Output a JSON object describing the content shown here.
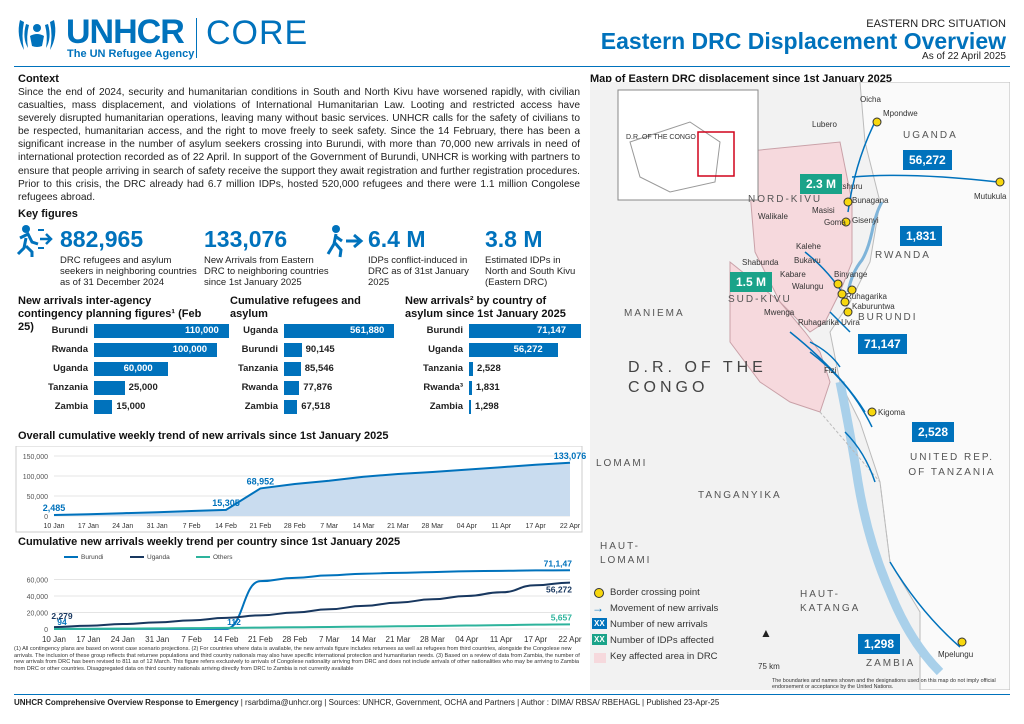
{
  "header": {
    "brand": "UNHCR",
    "tagline": "The UN Refugee Agency",
    "core": "CORE",
    "situation": "EASTERN DRC SITUATION",
    "title": "Eastern DRC Displacement Overview",
    "as_of": "As of 22 April 2025"
  },
  "context": {
    "title": "Context",
    "text": "Since the end of 2024, security and humanitarian conditions in South and North Kivu have worsened rapidly, with civilian casualties, mass displacement, and violations of International Humanitarian Law. Looting and restricted access have severely disrupted humanitarian operations, leaving many without basic services. UNHCR calls for the safety of civilians to be respected, humanitarian access, and the right to move freely to seek safety. Since the 14 February, there has been a significant increase in the number of asylum seekers crossing into Burundi, with more than 70,000 new arrivals in need of international protection recorded as of 22 April. In support of the Government of Burundi, UNHCR is working with partners to ensure that people arriving in search of safety receive the support they await registration and further registration procedures. Prior to this crisis, the DRC already had 6.7 million IDPs, hosted 520,000 refugees and there were 1.1 million Congolese refugees abroad."
  },
  "key_figures": {
    "title": "Key figures",
    "items": [
      {
        "value": "882,965",
        "label": "DRC refugees and asylum seekers in neighboring countries as of 31 December 2024",
        "icon": "person-running-arrow-icon"
      },
      {
        "value": "133,076",
        "label": "New Arrivals from Eastern DRC to neighboring countries since 1st January 2025",
        "icon": ""
      },
      {
        "value": "6.4 M",
        "label": "IDPs conflict-induced in DRC as of 31st January 2025",
        "icon": "person-walking-arrow-icon"
      },
      {
        "value": "3.8 M",
        "label": "Estimated IDPs in North and South Kivu (Eastern DRC)",
        "icon": ""
      }
    ]
  },
  "chart_data": [
    {
      "type": "bar",
      "title": "New arrivals inter-agency contingency planning figures¹ (Feb 25)",
      "categories": [
        "Burundi",
        "Rwanda",
        "Uganda",
        "Tanzania",
        "Zambia"
      ],
      "values": [
        110000,
        100000,
        60000,
        25000,
        15000
      ],
      "labels": [
        "110,000",
        "100,000",
        "60,000",
        "25,000",
        "15,000"
      ],
      "orientation": "horizontal"
    },
    {
      "type": "bar",
      "title": "Cumulative refugees and asylum",
      "categories": [
        "Uganda",
        "Burundi",
        "Tanzania",
        "Rwanda",
        "Zambia"
      ],
      "values": [
        561880,
        90145,
        85546,
        77876,
        67518
      ],
      "labels": [
        "561,880",
        "90,145",
        "85,546",
        "77,876",
        "67,518"
      ],
      "orientation": "horizontal"
    },
    {
      "type": "bar",
      "title": "New arrivals² by country of asylum since 1st January 2025",
      "categories": [
        "Burundi",
        "Uganda",
        "Tanzania",
        "Rwanda³",
        "Zambia"
      ],
      "values": [
        71147,
        56272,
        2528,
        1831,
        1298
      ],
      "labels": [
        "71,147",
        "56,272",
        "2,528",
        "1,831",
        "1,298"
      ],
      "orientation": "horizontal"
    },
    {
      "type": "area",
      "title": "Overall cumulative weekly trend of new arrivals since 1st January 2025",
      "x": [
        "10 Jan",
        "17 Jan",
        "24 Jan",
        "31 Jan",
        "7 Feb",
        "14 Feb",
        "21 Feb",
        "28 Feb",
        "7 Mar",
        "14 Mar",
        "21 Mar",
        "28 Mar",
        "04 Apr",
        "11 Apr",
        "17 Apr",
        "22 Apr"
      ],
      "values": [
        2485,
        4500,
        7000,
        9500,
        12500,
        15305,
        68952,
        80000,
        88000,
        98000,
        105000,
        110000,
        116000,
        122000,
        128000,
        133076
      ],
      "point_labels": {
        "0": "2,485",
        "5": "15,305",
        "6": "68,952",
        "15": "133,076"
      },
      "yticks": [
        "0",
        "50,000",
        "100,000",
        "150,000"
      ],
      "ylim": [
        0,
        150000
      ]
    },
    {
      "type": "line",
      "title": "Cumulative new arrivals weekly trend per country since 1st January 2025",
      "x": [
        "10 Jan",
        "17 Jan",
        "24 Jan",
        "31 Jan",
        "7 Feb",
        "14 Feb",
        "21 Feb",
        "28 Feb",
        "7 Mar",
        "14 Mar",
        "21 Mar",
        "28 Mar",
        "04 Apr",
        "11 Apr",
        "17 Apr",
        "22 Apr"
      ],
      "series": [
        {
          "name": "Burundi",
          "color": "#0072bc",
          "values": [
            94,
            100,
            103,
            106,
            109,
            112,
            58000,
            62000,
            65000,
            67000,
            68000,
            69000,
            70000,
            70500,
            71000,
            71147
          ]
        },
        {
          "name": "Uganda",
          "color": "#18375f",
          "values": [
            2279,
            4000,
            6000,
            8000,
            10500,
            13500,
            16500,
            20000,
            24000,
            28000,
            32000,
            36000,
            40000,
            44500,
            53000,
            56272
          ]
        },
        {
          "name": "Others",
          "color": "#2db39c",
          "values": [
            0,
            200,
            400,
            700,
            1000,
            1300,
            1700,
            2100,
            2500,
            2900,
            3300,
            3700,
            4200,
            4700,
            5300,
            5657
          ]
        }
      ],
      "point_labels": [
        {
          "series": 0,
          "index": 0,
          "text": "94"
        },
        {
          "series": 0,
          "index": 5,
          "text": "112"
        },
        {
          "series": 1,
          "index": 0,
          "text": "2,279"
        },
        {
          "series": 0,
          "index": 15,
          "text": "71,1,47"
        },
        {
          "series": 1,
          "index": 15,
          "text": "56,272"
        },
        {
          "series": 2,
          "index": 15,
          "text": "5,657"
        }
      ],
      "yticks": [
        "0",
        "20,000",
        "40,000",
        "60,000"
      ],
      "ylim": [
        0,
        80000
      ]
    }
  ],
  "map": {
    "title": "Map of Eastern DRC displacement since 1st January 2025",
    "inset_label": "D.R. OF THE CONGO",
    "regions": [
      "UGANDA",
      "NORD-KIVU",
      "RWANDA",
      "SUD-KIVU",
      "BURUNDI",
      "MANIEMA",
      "D.R. OF THE CONGO",
      "LOMAMI",
      "TANGANYIKA",
      "HAUT-LOMAMI",
      "UNITED REP. OF TANZANIA",
      "HAUT-KATANGA",
      "ZAMBIA"
    ],
    "places": [
      "Oicha",
      "Mpondwe",
      "Lubero",
      "Mutukula",
      "Rutshuru",
      "Bunagana",
      "Masisi",
      "Goma",
      "Gisenyi",
      "Walikale",
      "Kalehe",
      "Kabare",
      "Shabunda",
      "Bukavu",
      "Walungu",
      "Binyange",
      "Ruhagarika",
      "Kaburuntwa",
      "Mwenga",
      "Ruhagarika Uvira",
      "Fizi",
      "Kigoma",
      "Mpelungu"
    ],
    "badges": [
      {
        "text": "56,272",
        "kind": "arrivals"
      },
      {
        "text": "2.3 M",
        "kind": "idps"
      },
      {
        "text": "1,831",
        "kind": "arrivals"
      },
      {
        "text": "1.5 M",
        "kind": "idps"
      },
      {
        "text": "71,147",
        "kind": "arrivals"
      },
      {
        "text": "2,528",
        "kind": "arrivals"
      },
      {
        "text": "1,298",
        "kind": "arrivals"
      }
    ],
    "legend": [
      "Border crossing point",
      "Movement of new arrivals",
      "Number of new arrivals",
      "Number of IDPs affected",
      "Key affected area in DRC"
    ],
    "legend_box": "XX",
    "scale": "75 km",
    "disclaimer": "The boundaries and names shown and the designations used on this map do not imply official endorsement or acceptance by the United Nations."
  },
  "footnotes": "(1) All contingency plans are based on worst case scenario projections. (2) For countries where data is available, the new arrivals figure includes returnees as well as refugees from third countries, alongside the Congolese new arrivals. The inclusion of these group reflects that returnee populations and third country nationals may also have specific international protection and humanitarian needs. (3) Based on a review of data from Zambia, the number of new arrivals from DRC has been revised to 811 as of 12 March. This figure refers exclusively to arrivals of Congolese nationality arriving from DRC and does not include arrivals of other nationalities who may be arriving to Zambia from DRC or other countries. Disaggregated data on third country nationals arriving directly from DRC to Zambia is not currently available",
  "footer": {
    "bold": "UNHCR Comprehensive Overview Response to Emergency",
    "rest": " | rsarbdima@unhcr.org | Sources: UNHCR, Government, OCHA and Partners | Author : DIMA/ RBSA/ RBEHAGL | Published 23-Apr-25"
  },
  "colors": {
    "primary": "#0072bc",
    "dark": "#18375f",
    "green": "#2db39c",
    "affected": "#f6d9dd"
  }
}
